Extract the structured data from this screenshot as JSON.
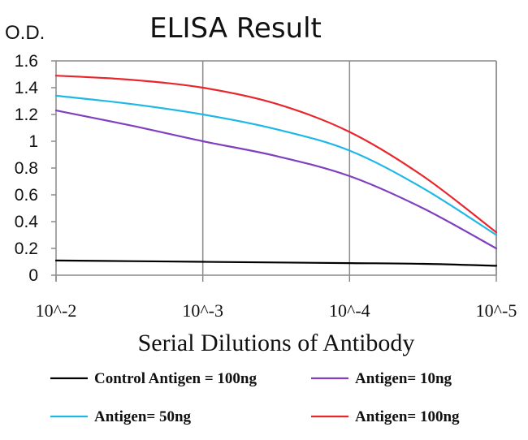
{
  "chart_data": {
    "type": "line",
    "title": "ELISA Result",
    "ylabel": "O.D.",
    "xlabel": "Serial Dilutions of Antibody",
    "categories": [
      "10^-2",
      "10^-3",
      "10^-4",
      "10^-5"
    ],
    "ylim": [
      0,
      1.6
    ],
    "yticks": [
      "0",
      "0.2",
      "0.4",
      "0.6",
      "0.8",
      "1",
      "1.2",
      "1.4",
      "1.6"
    ],
    "grid": "vertical",
    "legend_position": "bottom",
    "series": [
      {
        "name": "Control Antigen = 100ng",
        "color": "#000000",
        "x": [
          0,
          0.5,
          1,
          1.5,
          2,
          2.5,
          3
        ],
        "values": [
          0.11,
          0.105,
          0.1,
          0.095,
          0.09,
          0.085,
          0.07
        ]
      },
      {
        "name": "Antigen= 10ng",
        "color": "#7f3fbf",
        "x": [
          0,
          0.5,
          1,
          1.5,
          2,
          2.5,
          3
        ],
        "values": [
          1.23,
          1.12,
          1.0,
          0.89,
          0.74,
          0.5,
          0.2
        ]
      },
      {
        "name": "Antigen= 50ng",
        "color": "#1fb8e6",
        "x": [
          0,
          0.5,
          1,
          1.5,
          2,
          2.5,
          3
        ],
        "values": [
          1.34,
          1.28,
          1.2,
          1.09,
          0.93,
          0.65,
          0.3
        ]
      },
      {
        "name": "Antigen= 100ng",
        "color": "#e8262c",
        "x": [
          0,
          0.5,
          1,
          1.5,
          2,
          2.5,
          3
        ],
        "values": [
          1.49,
          1.46,
          1.4,
          1.28,
          1.07,
          0.74,
          0.32
        ]
      }
    ]
  }
}
